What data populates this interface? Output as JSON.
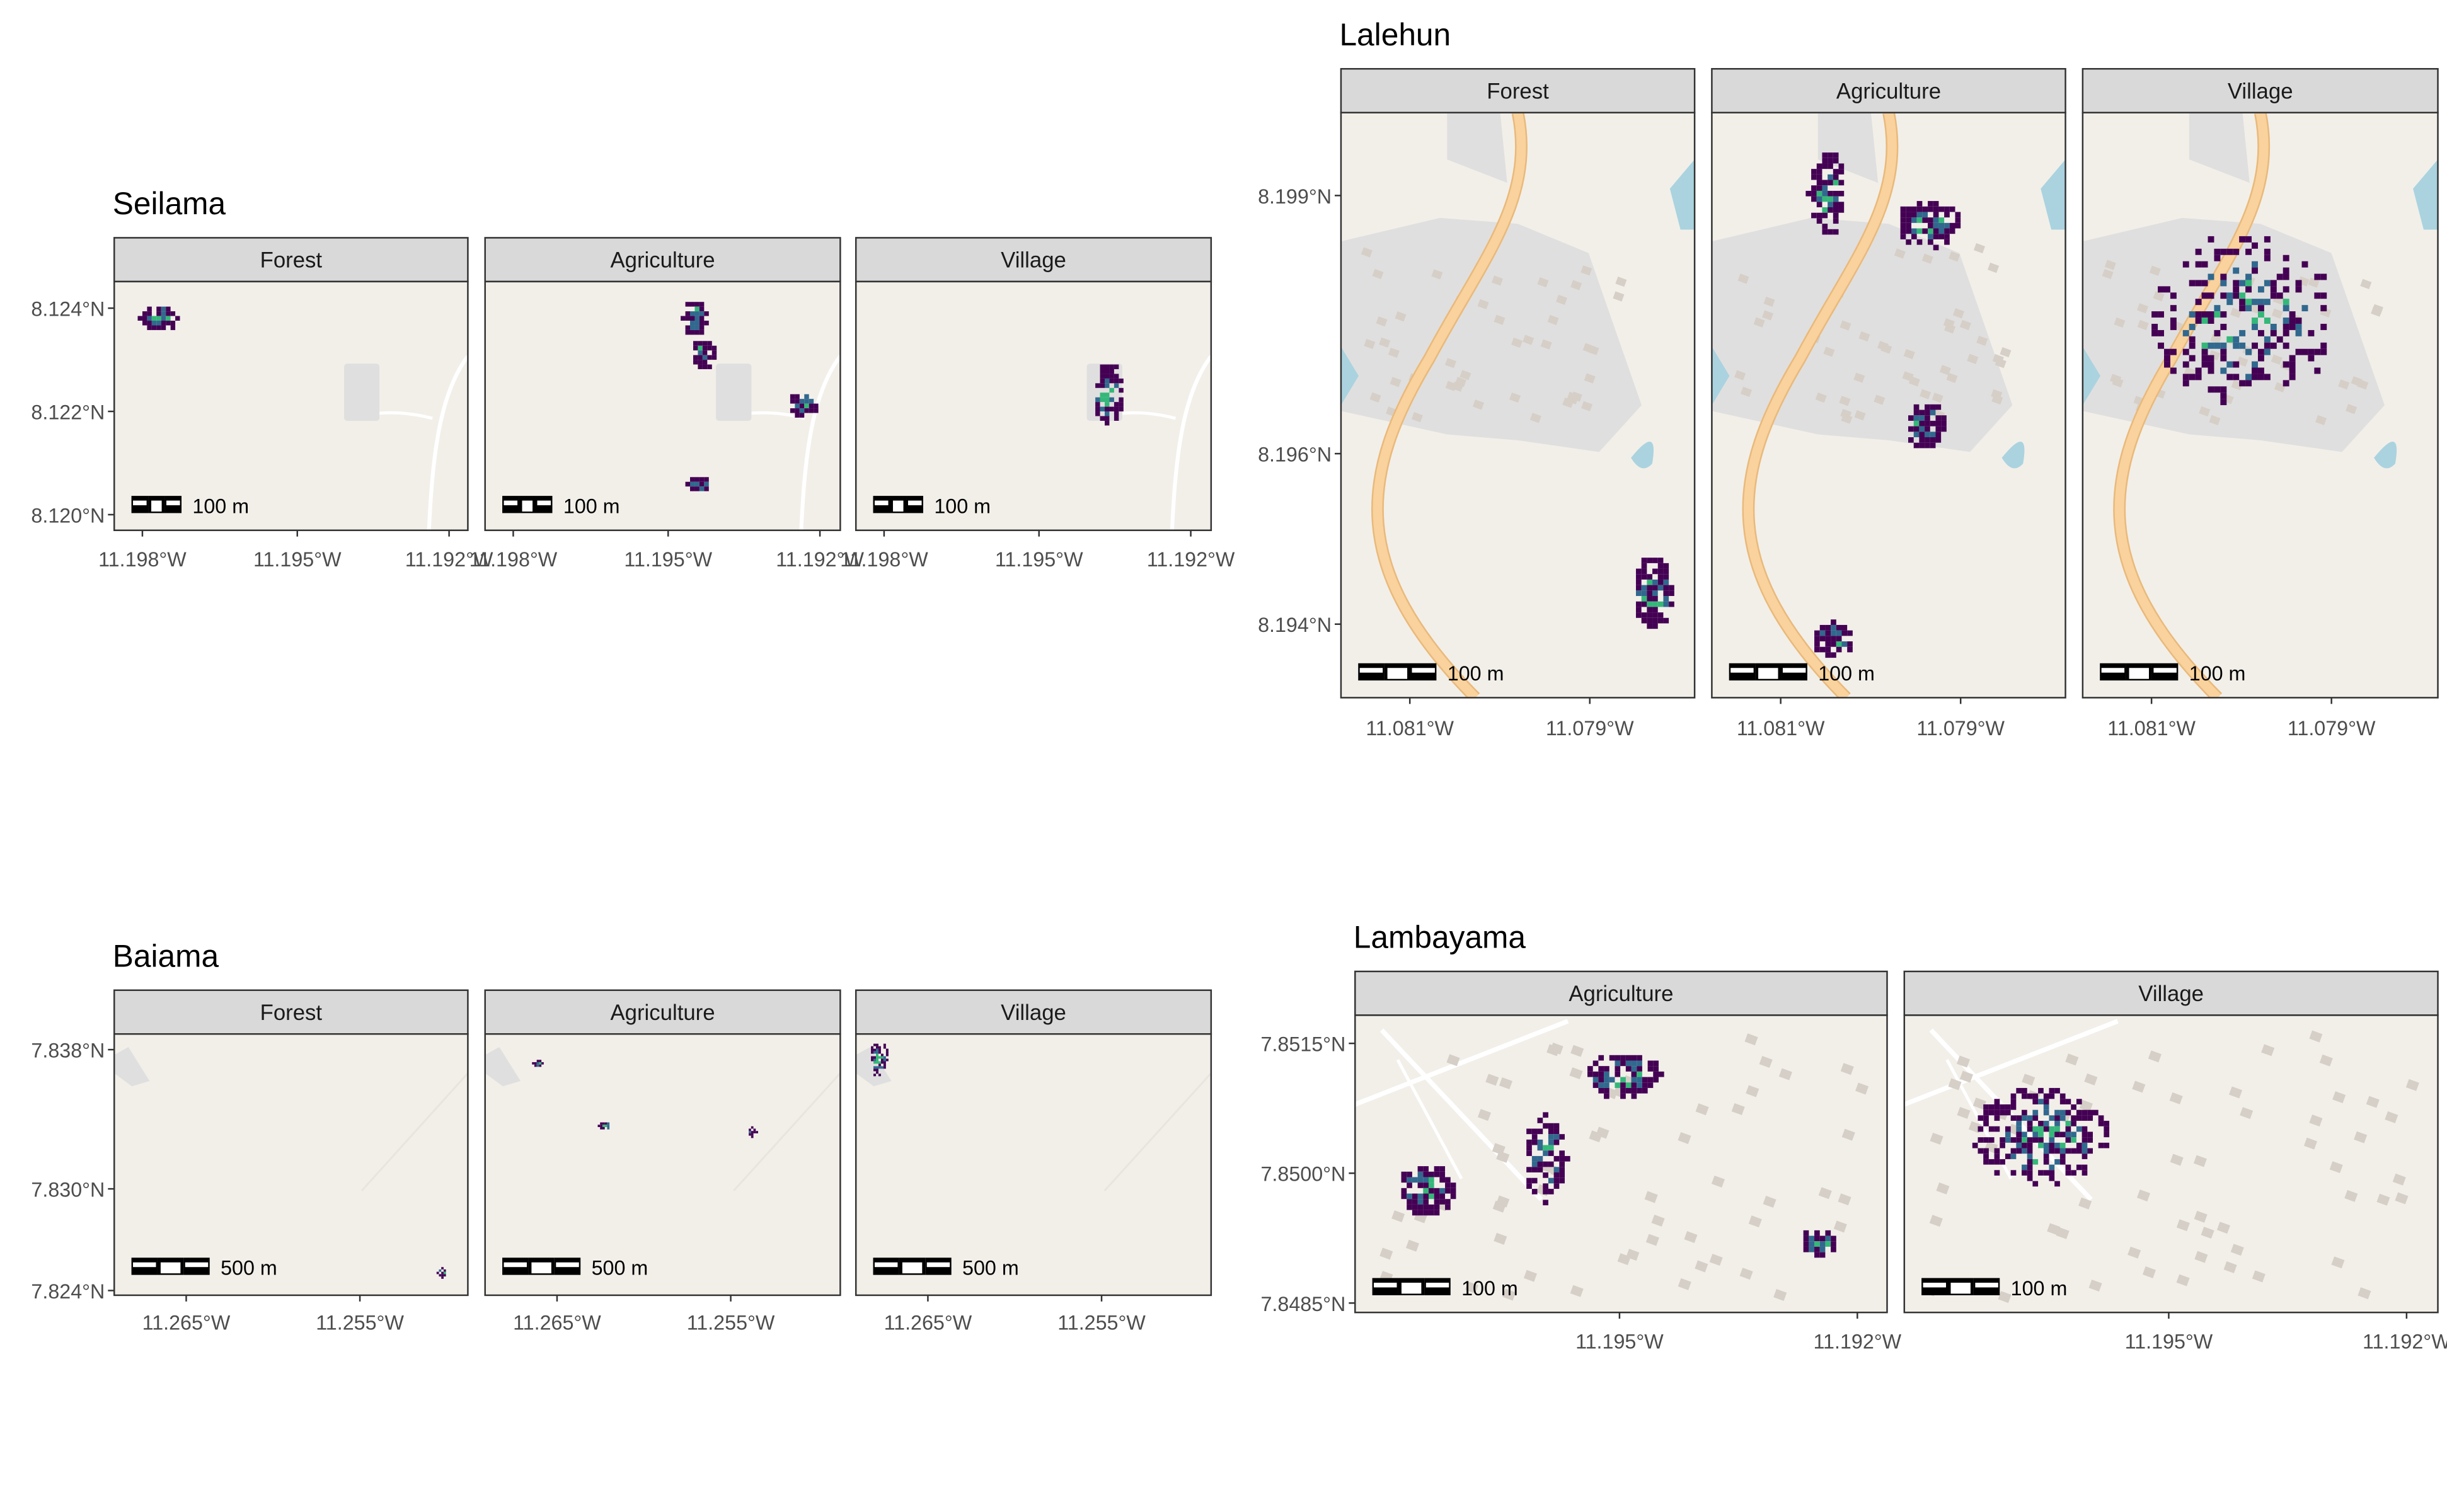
{
  "sites": [
    {
      "title": "Seilama",
      "scale_label": "100 m",
      "panels": [
        "Forest",
        "Agriculture",
        "Village"
      ],
      "y_ticks": [
        {
          "label": "8.124°N",
          "value": 8.124
        },
        {
          "label": "8.122°N",
          "value": 8.122
        },
        {
          "label": "8.120°N",
          "value": 8.12
        }
      ],
      "x_ticks": [
        {
          "label": "11.198°W",
          "value": -11.198
        },
        {
          "label": "11.195°W",
          "value": -11.195
        },
        {
          "label": "11.192°W",
          "value": -11.192
        }
      ],
      "lon_range": [
        -11.199,
        -11.1915
      ],
      "lat_range": [
        8.1197,
        8.1251
      ]
    },
    {
      "title": "Lalehun",
      "scale_label": "100 m",
      "panels": [
        "Forest",
        "Agriculture",
        "Village"
      ],
      "y_ticks": [
        {
          "label": "8.199°N",
          "value": 8.199
        },
        {
          "label": "8.196°N",
          "value": 8.196
        },
        {
          "label": "8.194°N",
          "value": 8.194
        }
      ],
      "x_ticks": [
        {
          "label": "11.081°W",
          "value": -11.081
        },
        {
          "label": "11.079°W",
          "value": -11.079
        }
      ],
      "lon_range": [
        -11.0818,
        -11.0778
      ],
      "lat_range": [
        8.1932,
        8.2001
      ]
    },
    {
      "title": "Baiama",
      "scale_label": "500 m",
      "panels": [
        "Forest",
        "Agriculture",
        "Village"
      ],
      "y_ticks": [
        {
          "label": "7.838°N",
          "value": 7.838
        },
        {
          "label": "7.830°N",
          "value": 7.83
        },
        {
          "label": "7.824°N",
          "value": 7.824
        }
      ],
      "x_ticks": [
        {
          "label": "11.265°W",
          "value": -11.265
        },
        {
          "label": "11.255°W",
          "value": -11.255
        }
      ],
      "lon_range": [
        -11.2705,
        -11.2498
      ],
      "lat_range": [
        7.8236,
        7.8395
      ]
    },
    {
      "title": "Lambayama",
      "scale_label": "100 m",
      "panels": [
        "Agriculture",
        "Village"
      ],
      "y_ticks": [
        {
          "label": "7.8515°N",
          "value": 7.8515
        },
        {
          "label": "7.8500°N",
          "value": 7.85
        },
        {
          "label": "7.8485°N",
          "value": 7.8485
        }
      ],
      "x_ticks": [
        {
          "label": "11.195°W",
          "value": -11.195
        },
        {
          "label": "11.192°W",
          "value": -11.192
        }
      ],
      "lon_range": [
        -11.199,
        -11.192
      ],
      "lat_range": [
        7.8484,
        7.8523
      ]
    }
  ],
  "colors": {
    "map_bg": "#f2efe9",
    "strip_bg": "#d9d9d9",
    "settlement": "#e0dfdf",
    "building": "#d6cfc7",
    "road_major": "#f9d29d",
    "road_minor": "#ffffff",
    "water": "#aad3df",
    "density_low": "#440154",
    "density_mid": "#31688e",
    "density_high": "#35b779"
  }
}
